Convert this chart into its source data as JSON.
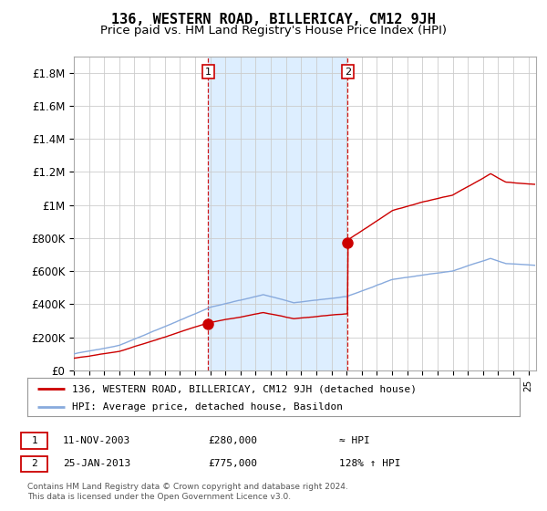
{
  "title": "136, WESTERN ROAD, BILLERICAY, CM12 9JH",
  "subtitle": "Price paid vs. HM Land Registry's House Price Index (HPI)",
  "ylabel_ticks": [
    0,
    200000,
    400000,
    600000,
    800000,
    1000000,
    1200000,
    1400000,
    1600000,
    1800000
  ],
  "ylabel_labels": [
    "£0",
    "£200K",
    "£400K",
    "£600K",
    "£800K",
    "£1M",
    "£1.2M",
    "£1.4M",
    "£1.6M",
    "£1.8M"
  ],
  "ylim": [
    0,
    1900000
  ],
  "xlim_start": 1995.0,
  "xlim_end": 2025.5,
  "red_line_color": "#cc0000",
  "blue_line_color": "#88aadd",
  "shade_color": "#ddeeff",
  "transaction1_x": 2003.87,
  "transaction1_y": 280000,
  "transaction2_x": 2013.07,
  "transaction2_y": 775000,
  "legend_label_red": "136, WESTERN ROAD, BILLERICAY, CM12 9JH (detached house)",
  "legend_label_blue": "HPI: Average price, detached house, Basildon",
  "note1_num": "1",
  "note1_date": "11-NOV-2003",
  "note1_price": "£280,000",
  "note1_hpi": "≈ HPI",
  "note2_num": "2",
  "note2_date": "25-JAN-2013",
  "note2_price": "£775,000",
  "note2_hpi": "128% ↑ HPI",
  "footer": "Contains HM Land Registry data © Crown copyright and database right 2024.\nThis data is licensed under the Open Government Licence v3.0.",
  "background_color": "#ffffff",
  "grid_color": "#cccccc"
}
